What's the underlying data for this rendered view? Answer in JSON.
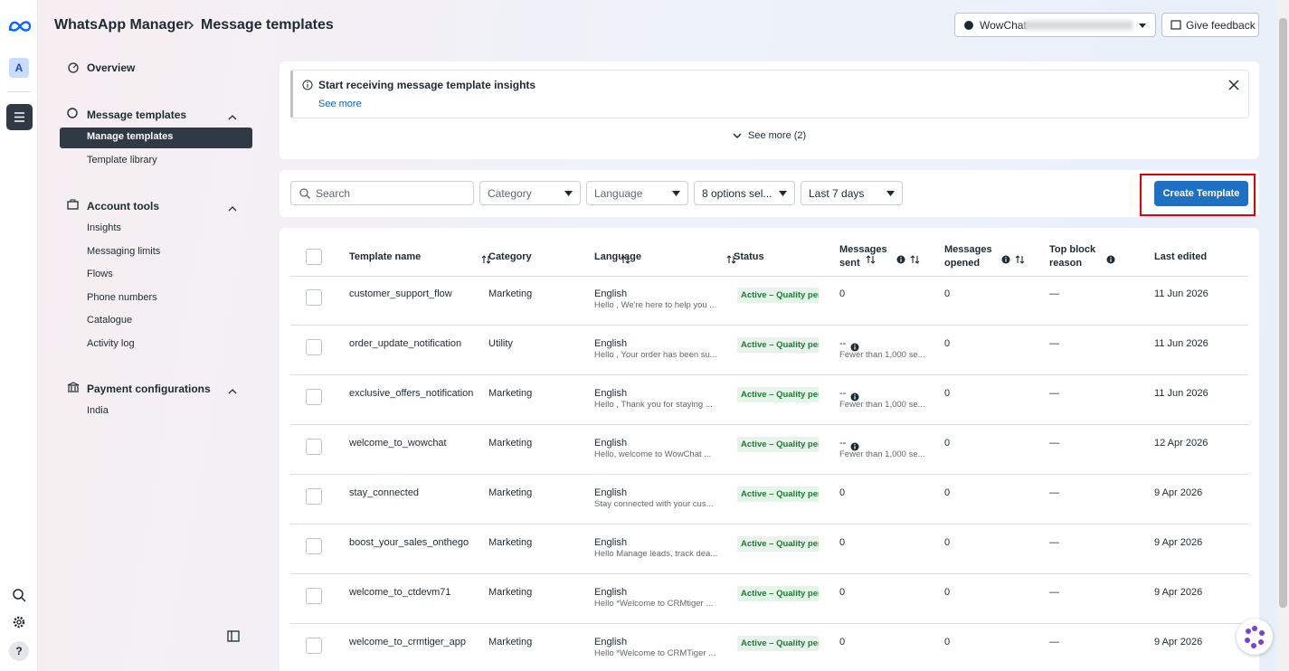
{
  "header": {
    "brand": "WhatsApp Manager",
    "breadcrumb": "Message templates",
    "account": "WowChat",
    "feedback": "Give feedback"
  },
  "rail": {
    "avatar": "A",
    "help": "?"
  },
  "sidebar": {
    "overview": "Overview",
    "sections": [
      {
        "title": "Message templates",
        "items": [
          "Manage templates",
          "Template library"
        ]
      },
      {
        "title": "Account tools",
        "items": [
          "Insights",
          "Messaging limits",
          "Flows",
          "Phone numbers",
          "Catalogue",
          "Activity log"
        ]
      },
      {
        "title": "Payment configurations",
        "items": [
          "India"
        ]
      }
    ]
  },
  "banner": {
    "title": "Start receiving message template insights",
    "link": "See more",
    "see_more": "See more (2)"
  },
  "filters": {
    "search": "Search",
    "category": "Category",
    "language": "Language",
    "options": "8 options sel...",
    "range": "Last 7 days",
    "create": "Create Template"
  },
  "table": {
    "headers": [
      "Template name",
      "Category",
      "Language",
      "Status",
      "Messages sent",
      "Messages opened",
      "Top block reason",
      "Last edited"
    ],
    "rows": [
      {
        "name": "customer_support_flow",
        "category": "Marketing",
        "language": "English",
        "preview": "Hello , We're here to help you ...",
        "status": "Active – Quality pen",
        "sent": "0",
        "opened": "0",
        "block": "—",
        "edited": "11 Jun 2026"
      },
      {
        "name": "order_update_notification",
        "category": "Utility",
        "language": "English",
        "preview": "Hello , Your order has been su...",
        "status": "Active – Quality pen",
        "sent": "--",
        "sent_note": "Fewer than 1,000 se...",
        "opened": "0",
        "block": "—",
        "edited": "11 Jun 2026"
      },
      {
        "name": "exclusive_offers_notification",
        "category": "Marketing",
        "language": "English",
        "preview": "Hello , Thank you for staying ...",
        "status": "Active – Quality pen",
        "sent": "--",
        "sent_note": "Fewer than 1,000 se...",
        "opened": "0",
        "block": "—",
        "edited": "11 Jun 2026"
      },
      {
        "name": "welcome_to_wowchat",
        "category": "Marketing",
        "language": "English",
        "preview": "Hello, welcome to WowChat ...",
        "status": "Active – Quality pen",
        "sent": "--",
        "sent_note": "Fewer than 1,000 se...",
        "opened": "0",
        "block": "—",
        "edited": "12 Apr 2026"
      },
      {
        "name": "stay_connected",
        "category": "Marketing",
        "language": "English",
        "preview": "Stay connected with your cus...",
        "status": "Active – Quality pen",
        "sent": "0",
        "opened": "0",
        "block": "—",
        "edited": "9 Apr 2026"
      },
      {
        "name": "boost_your_sales_onthego",
        "category": "Marketing",
        "language": "English",
        "preview": "Hello Manage leads, track dea...",
        "status": "Active – Quality pen",
        "sent": "0",
        "opened": "0",
        "block": "—",
        "edited": "9 Apr 2026"
      },
      {
        "name": "welcome_to_ctdevm71",
        "category": "Marketing",
        "language": "English",
        "preview": "Hello *Welcome to CRMtiger ...",
        "status": "Active – Quality pen",
        "sent": "0",
        "opened": "0",
        "block": "—",
        "edited": "9 Apr 2026"
      },
      {
        "name": "welcome_to_crmtiger_app",
        "category": "Marketing",
        "language": "English",
        "preview": "Hello *Welcome to CRMTiger ...",
        "status": "Active – Quality pen",
        "sent": "0",
        "opened": "0",
        "block": "—",
        "edited": "9 Apr 2026"
      }
    ]
  }
}
